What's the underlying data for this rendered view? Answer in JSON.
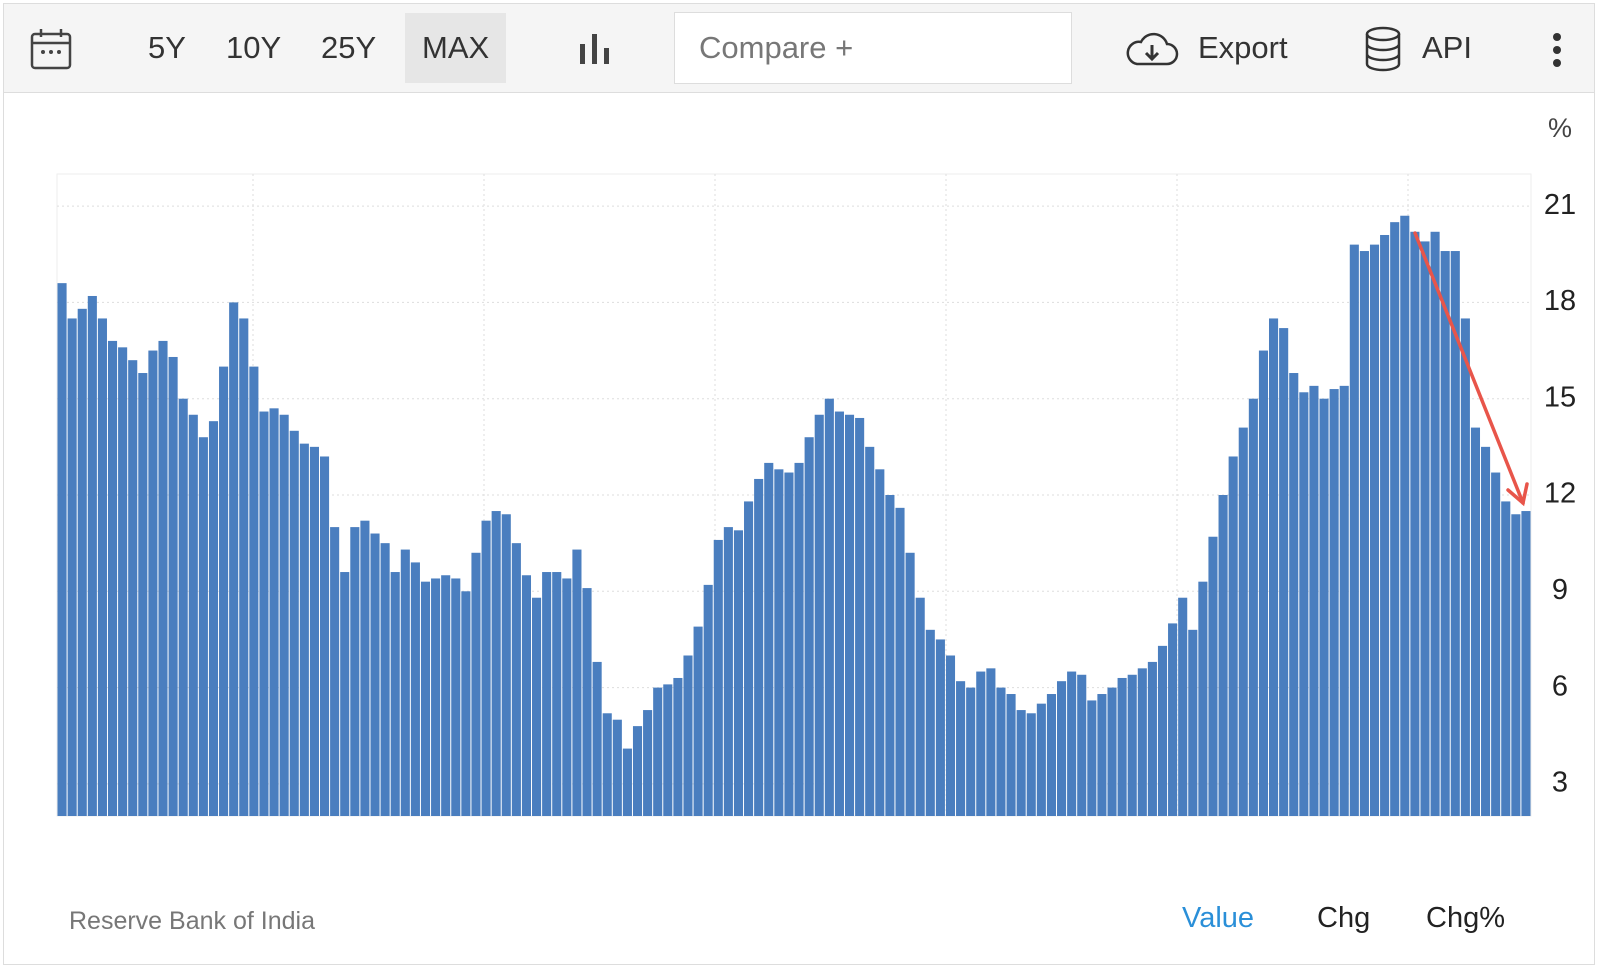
{
  "toolbar": {
    "ranges": [
      "5Y",
      "10Y",
      "25Y",
      "MAX"
    ],
    "compare": "Compare +",
    "export": "Export",
    "api": "API"
  },
  "chart_data": {
    "type": "bar",
    "unit": "%",
    "color": "#4a7ebf",
    "values": [
      18.6,
      17.5,
      17.8,
      18.2,
      17.5,
      16.8,
      16.6,
      16.2,
      15.8,
      16.5,
      16.8,
      16.3,
      15.0,
      14.5,
      13.8,
      14.3,
      16.0,
      18.0,
      17.5,
      16.0,
      14.6,
      14.7,
      14.5,
      14.0,
      13.6,
      13.5,
      13.2,
      11.0,
      9.6,
      11.0,
      11.2,
      10.8,
      10.5,
      9.6,
      10.3,
      9.9,
      9.3,
      9.4,
      9.5,
      9.4,
      9.0,
      10.2,
      11.2,
      11.5,
      11.4,
      10.5,
      9.5,
      8.8,
      9.6,
      9.6,
      9.4,
      10.3,
      9.1,
      6.8,
      5.2,
      5.0,
      4.1,
      4.8,
      5.3,
      6.0,
      6.1,
      6.3,
      7.0,
      7.9,
      9.2,
      10.6,
      11.0,
      10.9,
      11.8,
      12.5,
      13.0,
      12.8,
      12.7,
      13.0,
      13.8,
      14.5,
      15.0,
      14.6,
      14.5,
      14.4,
      13.5,
      12.8,
      12.0,
      11.6,
      10.2,
      8.8,
      7.8,
      7.5,
      7.0,
      6.2,
      6.0,
      6.5,
      6.6,
      6.0,
      5.8,
      5.3,
      5.2,
      5.5,
      5.8,
      6.2,
      6.5,
      6.4,
      5.6,
      5.8,
      6.0,
      6.3,
      6.4,
      6.6,
      6.8,
      7.3,
      8.0,
      8.8,
      7.8,
      9.3,
      10.7,
      12.0,
      13.2,
      14.1,
      15.0,
      16.5,
      17.5,
      17.2,
      15.8,
      15.2,
      15.4,
      15.0,
      15.3,
      15.4,
      19.8,
      19.6,
      19.8,
      20.1,
      20.5,
      20.7,
      20.2,
      19.9,
      20.2,
      19.6,
      19.6,
      17.5,
      14.1,
      13.5,
      12.7,
      11.8,
      11.4,
      11.5
    ],
    "ylim": [
      2,
      22
    ],
    "yticks": [
      3,
      6,
      9,
      12,
      15,
      18,
      21
    ],
    "grid": true
  },
  "source": "Reserve Bank of India",
  "tabs": [
    "Value",
    "Chg",
    "Chg%"
  ]
}
